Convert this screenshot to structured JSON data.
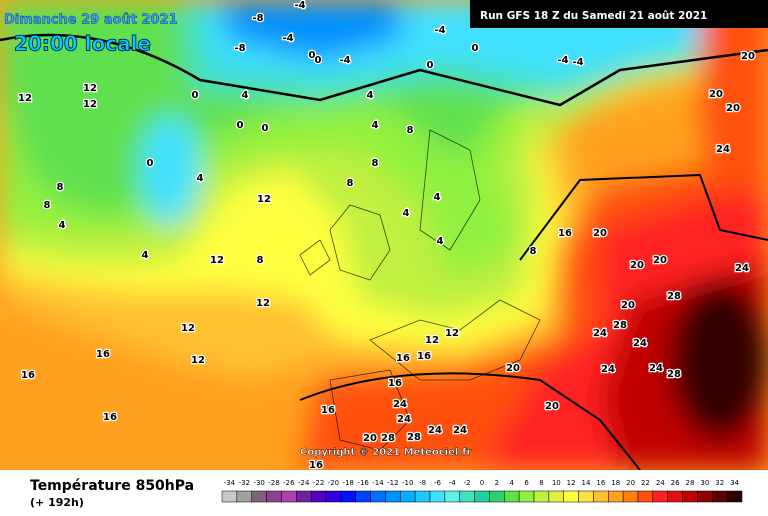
{
  "header": {
    "title": "Dimanche 29 août 2021",
    "time": "20:00 locale",
    "run": "Run GFS 18 Z du Samedi 21 août 2021"
  },
  "copyright": "Copyright © 2021 Meteociel.fr",
  "footer": {
    "variable": "Température 850hPa",
    "lead": "(+ 192h)"
  },
  "legend": {
    "values": [
      -34,
      -32,
      -30,
      -28,
      -26,
      -24,
      -22,
      -20,
      -18,
      -16,
      -14,
      -12,
      -10,
      -8,
      -6,
      -4,
      -2,
      0,
      2,
      4,
      6,
      8,
      10,
      12,
      14,
      16,
      18,
      20,
      22,
      24,
      26,
      28,
      30,
      32,
      34
    ],
    "colors": [
      "#c8c8c8",
      "#a0a0a0",
      "#806080",
      "#904090",
      "#b040b0",
      "#7020a0",
      "#5000c0",
      "#3000e0",
      "#0010ff",
      "#0040ff",
      "#0070ff",
      "#0090ff",
      "#00b0ff",
      "#20c8ff",
      "#40e0ff",
      "#60f0e8",
      "#40e0c0",
      "#20d0a0",
      "#30d070",
      "#60e050",
      "#90f040",
      "#c0f040",
      "#e0f040",
      "#ffff40",
      "#ffe040",
      "#ffc030",
      "#ffa020",
      "#ff8010",
      "#ff5010",
      "#ff2020",
      "#e01010",
      "#c00000",
      "#900000",
      "#600000",
      "#300000"
    ]
  },
  "isotherm_labels": [
    -8,
    -8,
    -4,
    -4,
    0,
    0,
    -4,
    -4,
    -4,
    -4,
    0,
    0,
    0,
    4,
    0,
    0,
    4,
    4,
    8,
    0,
    4,
    12,
    12,
    8,
    4,
    4,
    12,
    12,
    8,
    12,
    12,
    16,
    16,
    16,
    12,
    16,
    20,
    20,
    20,
    24,
    20,
    28,
    24,
    28,
    24,
    24,
    28,
    24,
    20,
    20,
    24,
    16,
    16,
    16,
    12,
    12,
    24,
    28,
    24,
    24,
    20,
    28,
    16,
    16,
    20,
    20,
    24,
    20,
    8,
    8,
    4,
    4,
    4,
    8,
    12,
    8
  ]
}
